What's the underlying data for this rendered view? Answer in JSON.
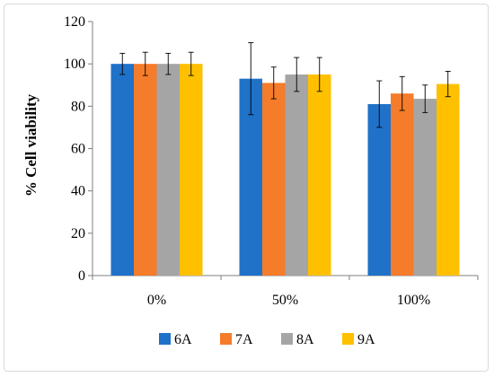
{
  "chart_data": {
    "type": "bar",
    "title": "",
    "xlabel": "",
    "ylabel": "% Cell viability",
    "categories": [
      "0%",
      "50%",
      "100%"
    ],
    "ylim": [
      0,
      120
    ],
    "yticks": [
      0,
      20,
      40,
      60,
      80,
      100,
      120
    ],
    "grid": false,
    "legend_position": "bottom",
    "series": [
      {
        "name": "6A",
        "color": "#1f72c8",
        "values": [
          100,
          93,
          81
        ],
        "errors": [
          5,
          17,
          11
        ]
      },
      {
        "name": "7A",
        "color": "#f57c2a",
        "values": [
          100,
          91,
          86
        ],
        "errors": [
          5.5,
          7.5,
          8
        ]
      },
      {
        "name": "8A",
        "color": "#a5a5a5",
        "values": [
          100,
          95,
          83.5
        ],
        "errors": [
          5,
          8,
          6.5
        ]
      },
      {
        "name": "9A",
        "color": "#ffc000",
        "values": [
          100,
          95,
          90.5
        ],
        "errors": [
          5.5,
          8,
          6
        ]
      }
    ]
  }
}
